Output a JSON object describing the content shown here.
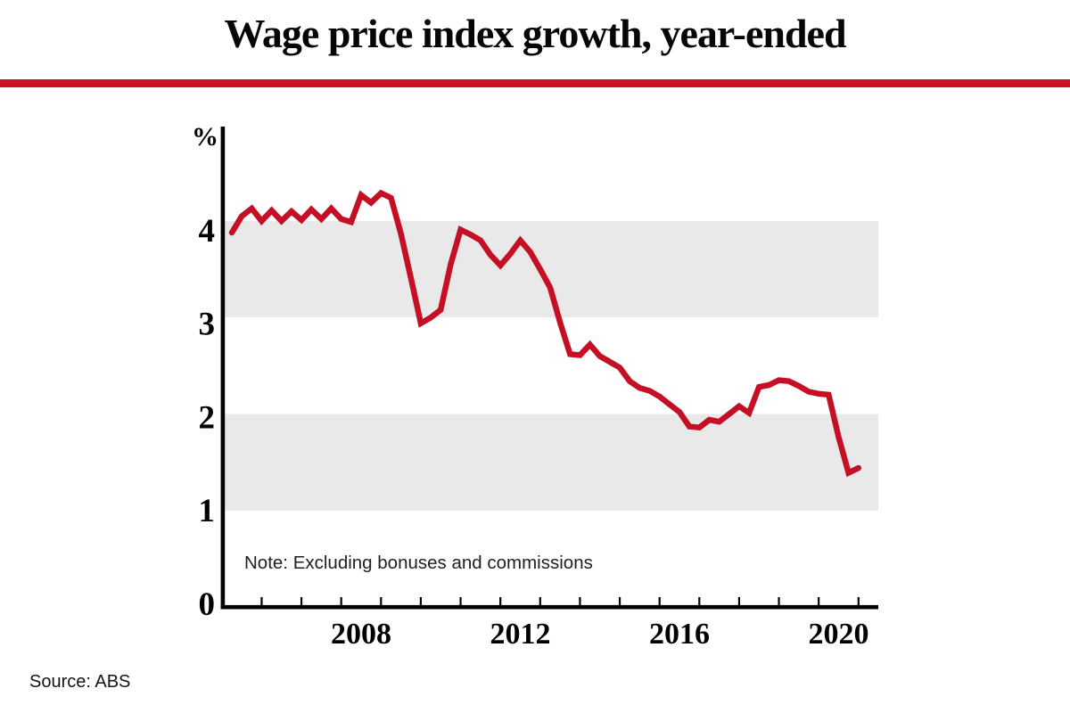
{
  "header": {
    "title": "Wage price index growth, year-ended"
  },
  "footer": {
    "source": "Source: ABS"
  },
  "colors": {
    "rule_red": "#cf0e28",
    "line_red": "#c40f24",
    "band_gray": "#e9e9e9",
    "axis_black": "#000000",
    "text_dark": "#202020"
  },
  "chart_data": {
    "type": "line",
    "title": "Wage price index growth, year-ended",
    "ylabel": "%",
    "note": "Note: Excluding bonuses and commissions",
    "source": "Source: ABS",
    "ylim": [
      0,
      5
    ],
    "y_ticks": [
      0,
      1,
      2,
      3,
      4
    ],
    "grid_bands": [
      [
        1,
        2
      ],
      [
        3,
        4
      ]
    ],
    "grid": "horizontal-bands",
    "legend": "none",
    "x_axis_start_year": 2005,
    "x_axis_end_year": 2021,
    "x_tick_years": [
      2006,
      2007,
      2008,
      2009,
      2010,
      2011,
      2012,
      2013,
      2014,
      2015,
      2016,
      2017,
      2018,
      2019,
      2020,
      2021
    ],
    "x_label_years": [
      2008,
      2012,
      2016,
      2020
    ],
    "x_tick_labels": [
      "2008",
      "2012",
      "2016",
      "2020"
    ],
    "series": [
      {
        "name": "Wage price index growth, year-ended (%)",
        "frequency": "quarterly",
        "start_quarter": "2005 Q1",
        "end_quarter": "2020 Q4",
        "values": [
          3.88,
          4.05,
          4.13,
          4.0,
          4.11,
          4.0,
          4.1,
          4.01,
          4.12,
          4.02,
          4.13,
          4.02,
          3.99,
          4.27,
          4.19,
          4.29,
          4.24,
          3.87,
          3.41,
          2.94,
          3.0,
          3.08,
          3.55,
          3.91,
          3.86,
          3.8,
          3.65,
          3.54,
          3.66,
          3.8,
          3.68,
          3.5,
          3.31,
          2.95,
          2.62,
          2.61,
          2.72,
          2.6,
          2.54,
          2.48,
          2.34,
          2.27,
          2.24,
          2.18,
          2.1,
          2.02,
          1.87,
          1.86,
          1.94,
          1.92,
          2.0,
          2.08,
          2.01,
          2.28,
          2.3,
          2.35,
          2.34,
          2.29,
          2.23,
          2.21,
          2.2,
          1.76,
          1.39,
          1.44
        ]
      }
    ]
  }
}
